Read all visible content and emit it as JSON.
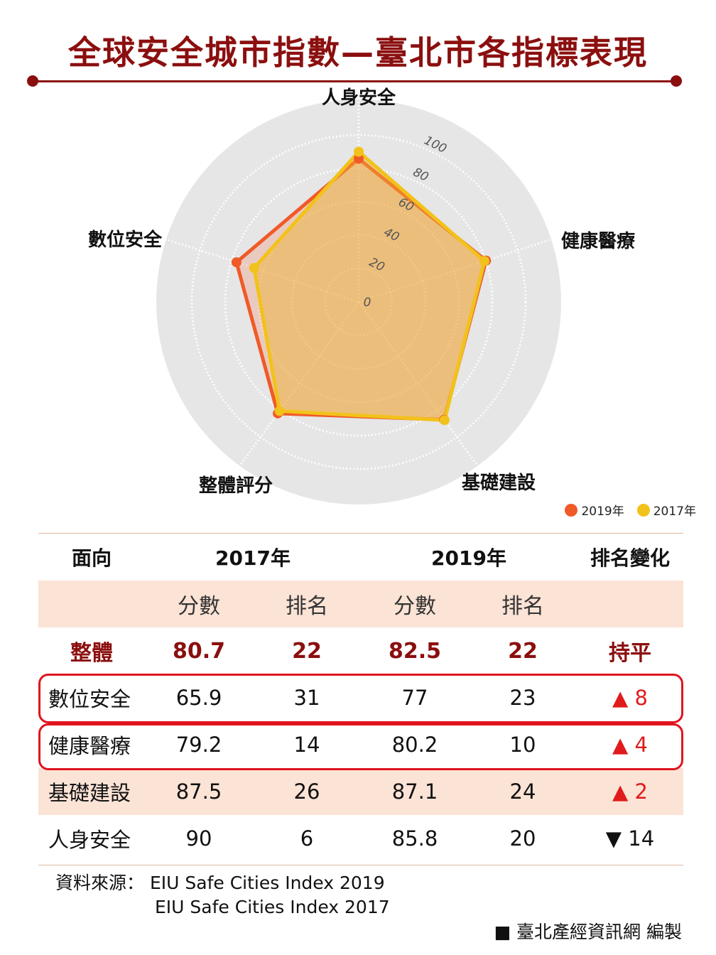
{
  "title": "全球安全城市指數—臺北市各指標表現",
  "chart_data": {
    "type": "radar",
    "axes": [
      "人身安全",
      "健康醫療",
      "基礎建設",
      "整體評分",
      "數位安全"
    ],
    "rlim": [
      0,
      100
    ],
    "ticks": [
      "0",
      "20",
      "40",
      "60",
      "80",
      "100"
    ],
    "series": [
      {
        "name": "2019年",
        "color": "#f05a28",
        "values": [
          85.8,
          80.2,
          87.1,
          82.5,
          77
        ]
      },
      {
        "name": "2017年",
        "color": "#f2c21a",
        "values": [
          90,
          79.2,
          87.5,
          80.7,
          65.9
        ]
      }
    ],
    "legend_position": "bottom-right"
  },
  "table": {
    "headers": [
      "面向",
      "2017年",
      "2019年",
      "排名變化"
    ],
    "subheaders": [
      "分數",
      "排名",
      "分數",
      "排名"
    ],
    "overall": {
      "label": "整體",
      "score2017": "80.7",
      "rank2017": "22",
      "score2019": "82.5",
      "rank2019": "22",
      "change": "持平"
    },
    "rows": [
      {
        "label": "數位安全",
        "score2017": "65.9",
        "rank2017": "31",
        "score2019": "77",
        "rank2019": "23",
        "change": "▲ 8"
      },
      {
        "label": "健康醫療",
        "score2017": "79.2",
        "rank2017": "14",
        "score2019": "80.2",
        "rank2019": "10",
        "change": "▲ 4"
      },
      {
        "label": "基礎建設",
        "score2017": "87.5",
        "rank2017": "26",
        "score2019": "87.1",
        "rank2019": "24",
        "change": "▲ 2"
      },
      {
        "label": "人身安全",
        "score2017": "90",
        "rank2017": "6",
        "score2019": "85.8",
        "rank2019": "20",
        "change": "▼ 14"
      }
    ]
  },
  "source": {
    "label": "資料來源：",
    "line1": "EIU  Safe Cities Index 2019",
    "line2": "EIU  Safe Cities Index 2017"
  },
  "credit": "■ 臺北產經資訊網 編製"
}
